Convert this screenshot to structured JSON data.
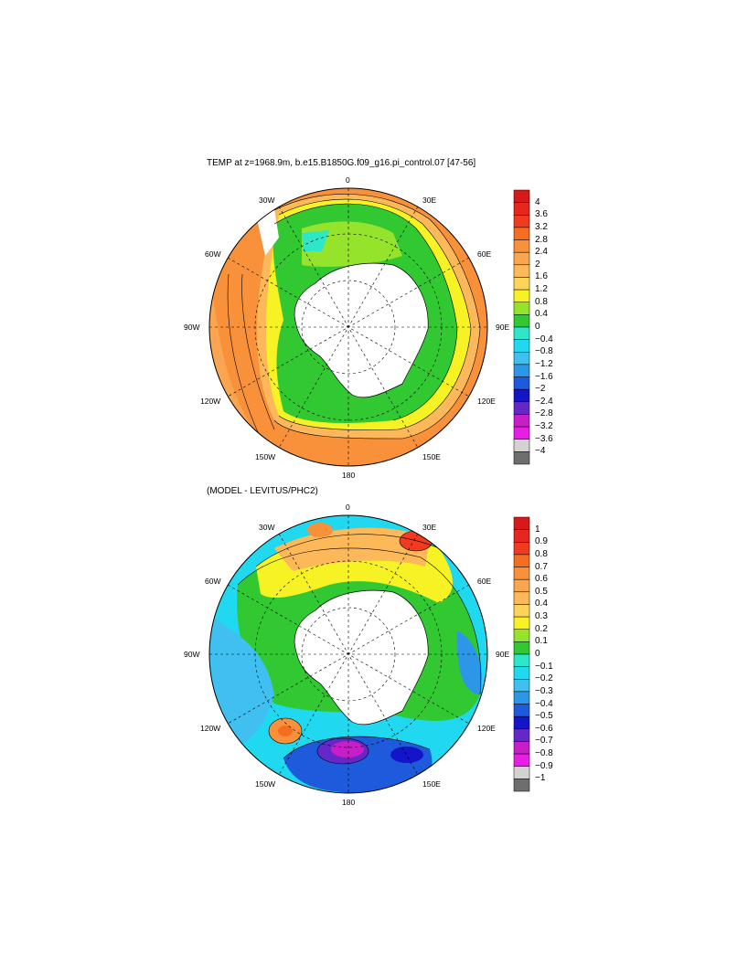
{
  "panel_top": {
    "title": "TEMP at z=1968.9m, b.e15.B1850G.f09_g16.pi_control.07 [47-56]",
    "lon_labels": {
      "n": "0",
      "nw": "30W",
      "ne": "30E",
      "w60": "60W",
      "e60": "60E",
      "w90": "90W",
      "e90": "90E",
      "w120": "120W",
      "e120": "120E",
      "w150": "150W",
      "e150": "150E",
      "s": "180"
    },
    "colorbar": {
      "labels": [
        "4",
        "3.6",
        "3.2",
        "2.8",
        "2.4",
        "2",
        "1.6",
        "1.2",
        "0.8",
        "0.4",
        "0",
        "−0.4",
        "−0.8",
        "−1.2",
        "−1.6",
        "−2",
        "−2.4",
        "−2.8",
        "−3.2",
        "−3.6",
        "−4"
      ],
      "colors": [
        "#d7191c",
        "#e6261f",
        "#f03b20",
        "#f46d20",
        "#f8913a",
        "#fba550",
        "#fdb85a",
        "#fed35a",
        "#f6f224",
        "#96e32c",
        "#32c832",
        "#2ee6c8",
        "#20d8f0",
        "#40c0f0",
        "#2d96e6",
        "#1e5adc",
        "#1414c8",
        "#6428c8",
        "#c81ec8",
        "#e61ee6",
        "#d2d2d2",
        "#6e6e6e"
      ]
    }
  },
  "panel_bottom": {
    "title": "(MODEL - LEVITUS/PHC2)",
    "lon_labels": {
      "n": "0",
      "nw": "30W",
      "ne": "30E",
      "w60": "60W",
      "e60": "60E",
      "w90": "90W",
      "e90": "90E",
      "w120": "120W",
      "e120": "120E",
      "w150": "150W",
      "e150": "150E",
      "s": "180"
    },
    "colorbar": {
      "labels": [
        "1",
        "0.9",
        "0.8",
        "0.7",
        "0.6",
        "0.5",
        "0.4",
        "0.3",
        "0.2",
        "0.1",
        "0",
        "−0.1",
        "−0.2",
        "−0.3",
        "−0.4",
        "−0.5",
        "−0.6",
        "−0.7",
        "−0.8",
        "−0.9",
        "−1"
      ],
      "colors": [
        "#d7191c",
        "#e6261f",
        "#f03b20",
        "#f46d20",
        "#f8913a",
        "#fba550",
        "#fdb85a",
        "#fed35a",
        "#f6f224",
        "#96e32c",
        "#32c832",
        "#2ee6c8",
        "#20d8f0",
        "#40c0f0",
        "#2d96e6",
        "#1e5adc",
        "#1414c8",
        "#6428c8",
        "#c81ec8",
        "#e61ee6",
        "#d2d2d2",
        "#6e6e6e"
      ]
    }
  }
}
